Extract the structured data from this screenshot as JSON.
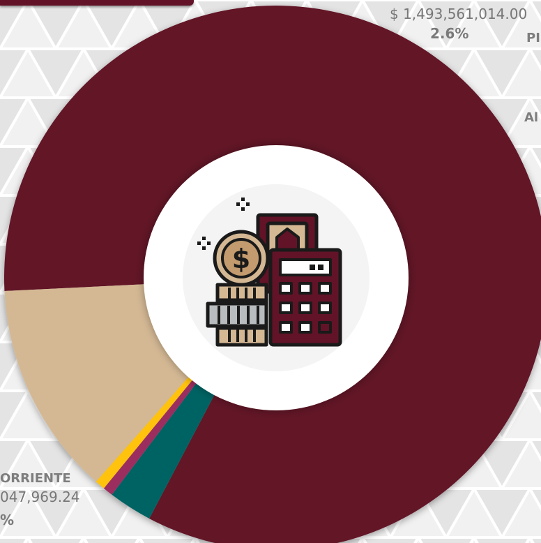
{
  "chart_data": {
    "type": "pie",
    "donut": true,
    "slices": [
      {
        "label": "",
        "value": 83.5,
        "color": "#621327"
      },
      {
        "label": "",
        "value": 2.6,
        "color": "#006463",
        "amount": "$ 1,493,561,014.00",
        "percent_text": "2.6%"
      },
      {
        "label": "",
        "value": 0.6,
        "color": "#9b2f5e"
      },
      {
        "label": "",
        "value": 0.6,
        "color": "#ffc20e"
      },
      {
        "label": "",
        "value": 12.7,
        "color": "#d4b894"
      }
    ],
    "visible_labels": {
      "top_amount": "$ 1,493,561,014.00",
      "top_percent": "2.6%",
      "right_label_1": "PI",
      "right_label_2": "Al",
      "left_name": "ORRIENTE",
      "left_amount": "047,969.24",
      "left_percent": "%"
    }
  },
  "center_icon": "money-calculator-coins-icon",
  "colors": {
    "maroon": "#621327",
    "teal": "#006463",
    "plum": "#9b2f5e",
    "gold": "#ffc20e",
    "tan": "#d4b894",
    "dark_outline": "#1a1a1a"
  }
}
